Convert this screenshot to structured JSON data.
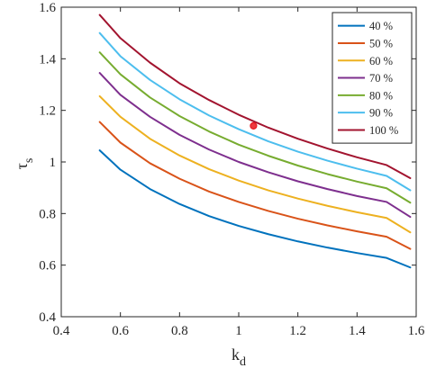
{
  "chart_data": {
    "type": "line",
    "title": "",
    "xlabel": "k",
    "xlabel_subscript": "d",
    "ylabel": "τ",
    "ylabel_subscript": "s",
    "xlim": [
      0.4,
      1.6
    ],
    "ylim": [
      0.4,
      1.6
    ],
    "xticks": [
      0.4,
      0.6,
      0.8,
      1.0,
      1.2,
      1.4,
      1.6
    ],
    "xtick_labels": [
      "0.4",
      "0.6",
      "0.8",
      "1",
      "1.2",
      "1.4",
      "1.6"
    ],
    "yticks": [
      0.4,
      0.6,
      0.8,
      1.0,
      1.2,
      1.4,
      1.6
    ],
    "ytick_labels": [
      "0.4",
      "0.6",
      "0.8",
      "1",
      "1.2",
      "1.4",
      "1.6"
    ],
    "grid": false,
    "legend_position": "top-right",
    "series": [
      {
        "name": "40 %",
        "color": "#0072BD",
        "x": [
          0.53,
          0.6,
          0.7,
          0.8,
          0.9,
          1.0,
          1.1,
          1.2,
          1.3,
          1.4,
          1.5,
          1.58
        ],
        "y": [
          1.045,
          0.97,
          0.895,
          0.837,
          0.79,
          0.752,
          0.72,
          0.692,
          0.668,
          0.647,
          0.628,
          0.591
        ]
      },
      {
        "name": "50 %",
        "color": "#D95319",
        "x": [
          0.53,
          0.6,
          0.7,
          0.8,
          0.9,
          1.0,
          1.1,
          1.2,
          1.3,
          1.4,
          1.5,
          1.58
        ],
        "y": [
          1.155,
          1.075,
          0.995,
          0.935,
          0.885,
          0.845,
          0.81,
          0.78,
          0.754,
          0.731,
          0.71,
          0.663
        ]
      },
      {
        "name": "60 %",
        "color": "#EDB120",
        "x": [
          0.53,
          0.6,
          0.7,
          0.8,
          0.9,
          1.0,
          1.1,
          1.2,
          1.3,
          1.4,
          1.5,
          1.58
        ],
        "y": [
          1.255,
          1.175,
          1.09,
          1.025,
          0.972,
          0.928,
          0.89,
          0.858,
          0.83,
          0.805,
          0.783,
          0.727
        ]
      },
      {
        "name": "70 %",
        "color": "#7E2F8E",
        "x": [
          0.53,
          0.6,
          0.7,
          0.8,
          0.9,
          1.0,
          1.1,
          1.2,
          1.3,
          1.4,
          1.5,
          1.58
        ],
        "y": [
          1.345,
          1.26,
          1.175,
          1.105,
          1.048,
          1.0,
          0.96,
          0.925,
          0.895,
          0.868,
          0.845,
          0.787
        ]
      },
      {
        "name": "80 %",
        "color": "#77AC30",
        "x": [
          0.53,
          0.6,
          0.7,
          0.8,
          0.9,
          1.0,
          1.1,
          1.2,
          1.3,
          1.4,
          1.5,
          1.58
        ],
        "y": [
          1.425,
          1.34,
          1.25,
          1.178,
          1.118,
          1.067,
          1.024,
          0.986,
          0.953,
          0.924,
          0.898,
          0.842
        ]
      },
      {
        "name": "90 %",
        "color": "#4DBEEE",
        "x": [
          0.53,
          0.6,
          0.7,
          0.8,
          0.9,
          1.0,
          1.1,
          1.2,
          1.3,
          1.4,
          1.5,
          1.58
        ],
        "y": [
          1.5,
          1.41,
          1.318,
          1.243,
          1.18,
          1.127,
          1.08,
          1.04,
          1.005,
          0.974,
          0.946,
          0.89
        ]
      },
      {
        "name": "100 %",
        "color": "#A2142F",
        "x": [
          0.53,
          0.6,
          0.7,
          0.8,
          0.9,
          1.0,
          1.1,
          1.2,
          1.3,
          1.4,
          1.5,
          1.58
        ],
        "y": [
          1.57,
          1.48,
          1.385,
          1.305,
          1.24,
          1.183,
          1.133,
          1.09,
          1.052,
          1.018,
          0.988,
          0.937
        ]
      }
    ],
    "annotations": [
      {
        "type": "marker",
        "shape": "circle",
        "x": 1.05,
        "y": 1.14,
        "color": "#E8181F"
      }
    ]
  }
}
